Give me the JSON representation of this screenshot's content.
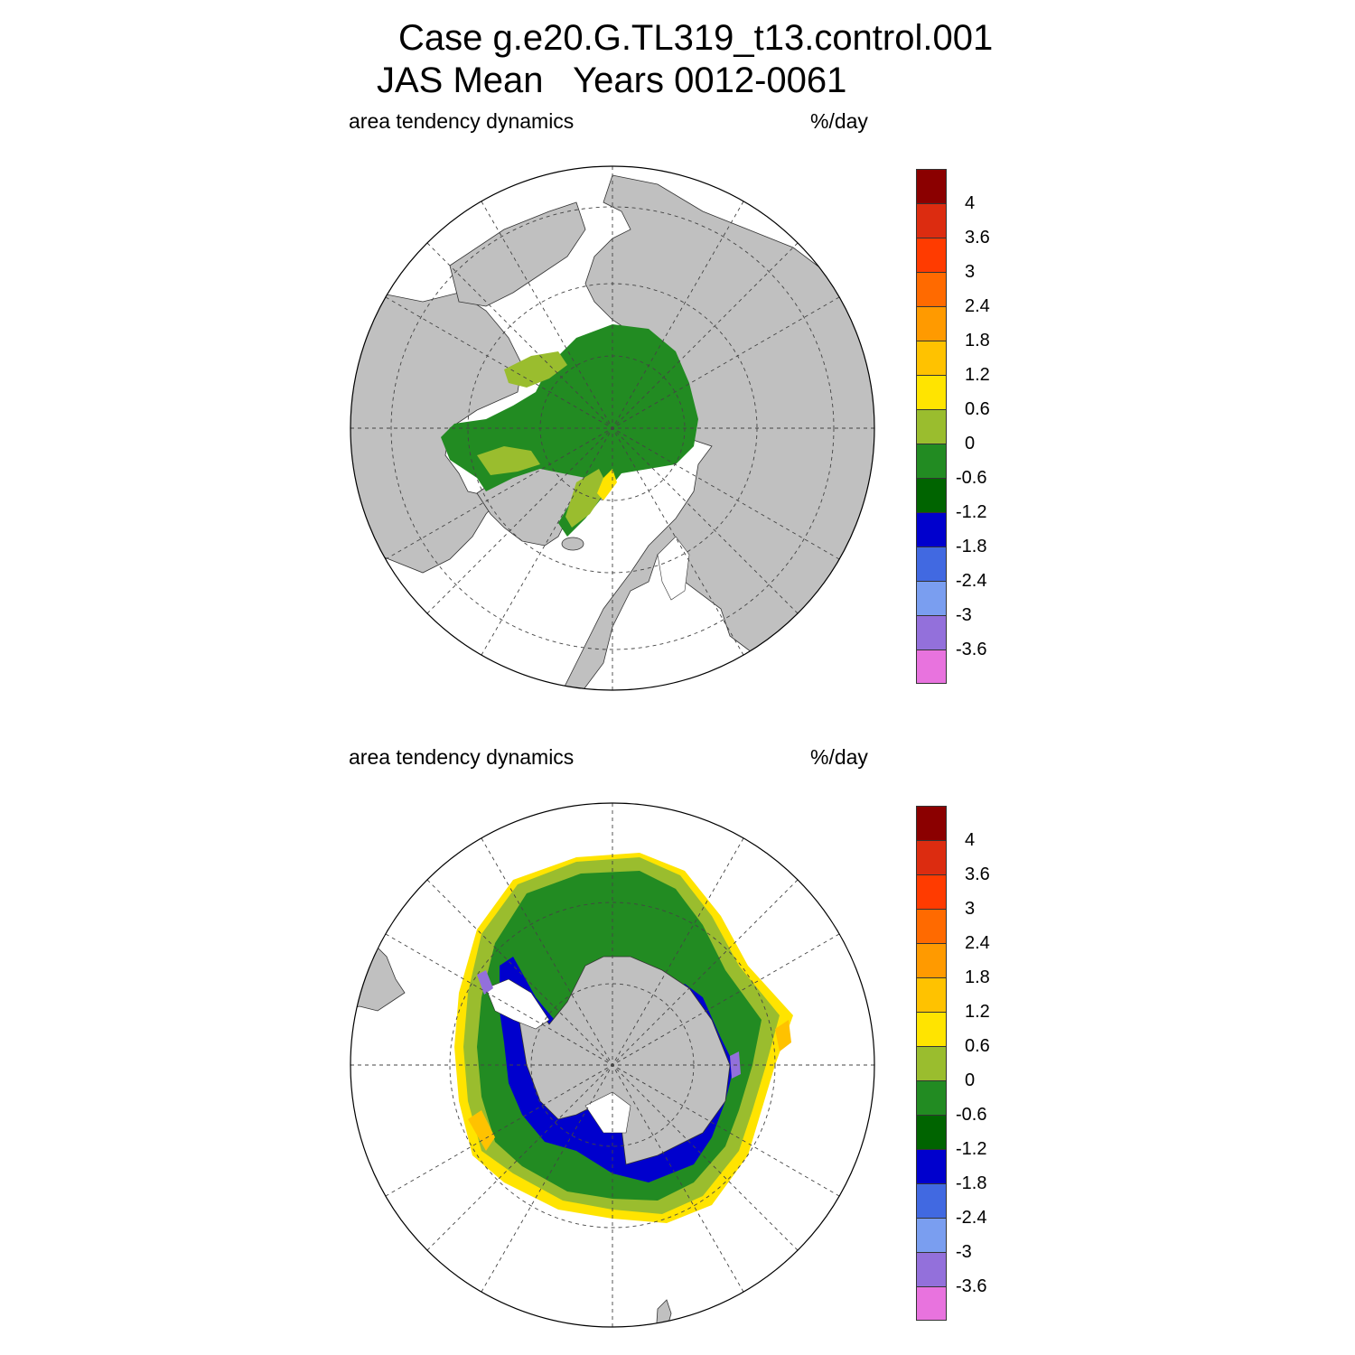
{
  "title_line1": "Case g.e20.G.TL319_t13.control.001",
  "title_line2": "JAS Mean   Years 0012-0061",
  "panels": [
    {
      "name": "arctic",
      "left_label": "area tendency dynamics",
      "right_label": "%/day"
    },
    {
      "name": "antarctic",
      "left_label": "area tendency dynamics",
      "right_label": "%/day"
    }
  ],
  "colorbar": {
    "colors": [
      "#8b0000",
      "#dc2c10",
      "#ff3b00",
      "#ff6a00",
      "#ff9a00",
      "#ffc200",
      "#ffe400",
      "#9abd2e",
      "#228b22",
      "#006400",
      "#0000cd",
      "#4169e1",
      "#7a9ef0",
      "#9370db",
      "#e873de"
    ],
    "labels": [
      "4",
      "3.6",
      "3",
      "2.4",
      "1.8",
      "1.2",
      "0.6",
      "0",
      "-0.6",
      "-1.2",
      "-1.8",
      "-2.4",
      "-3",
      "-3.6"
    ]
  },
  "colors": {
    "land": "#c0c0c0",
    "ocean": "#ffffff",
    "ice_main": "#228b22",
    "ice_light": "#9abd2e",
    "ice_yellow": "#ffe400",
    "ice_orange": "#ffc200",
    "ice_blue": "#0000cd",
    "ice_violet": "#9370db"
  }
}
